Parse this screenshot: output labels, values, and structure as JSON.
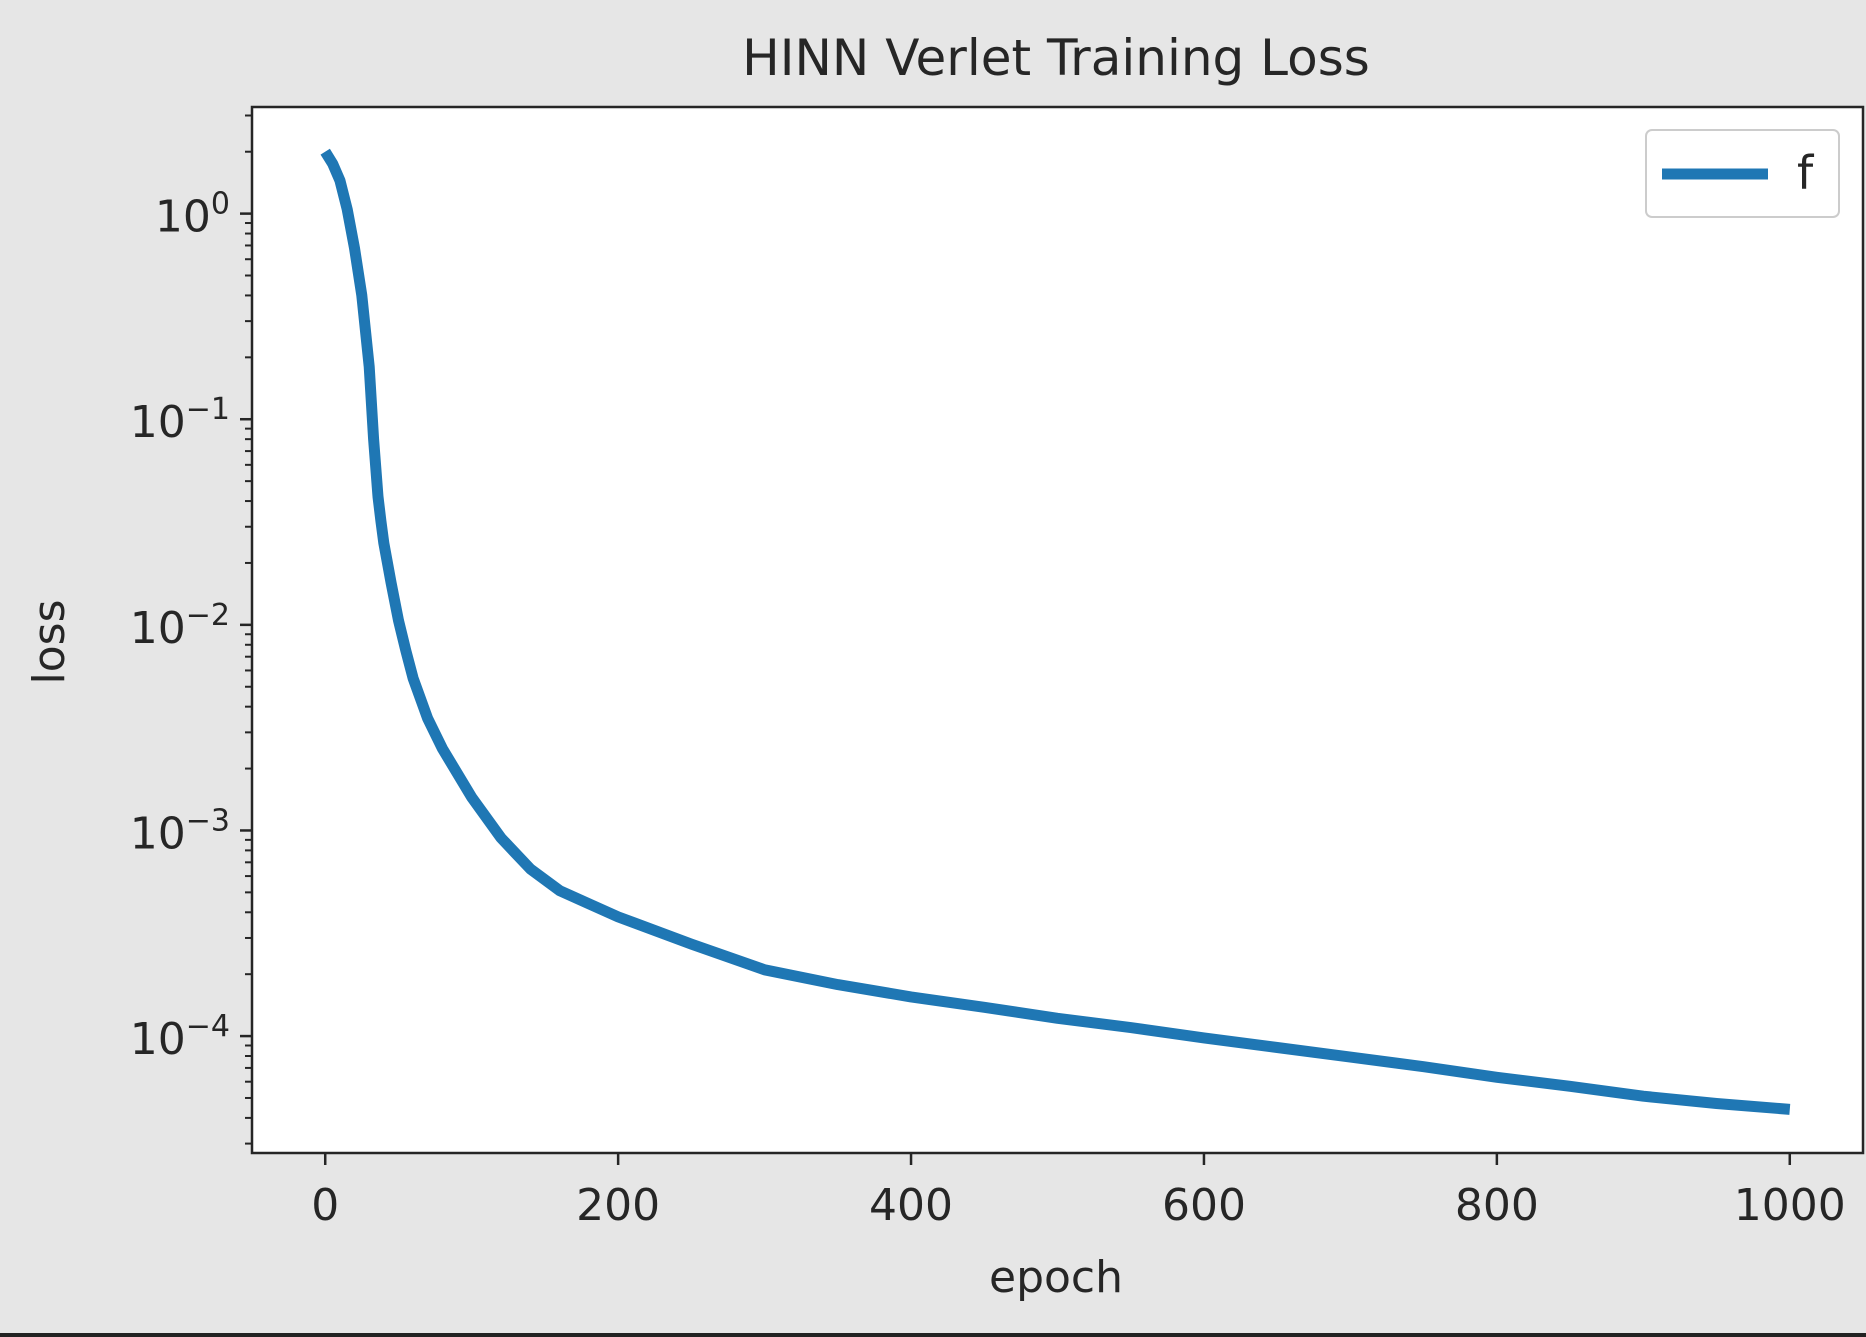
{
  "colors": {
    "figure_background": "#e6e6e6",
    "axes_background": "#ffffff",
    "axis_color": "#262626",
    "series_f": "#1f77b4"
  },
  "chart_data": {
    "type": "line",
    "title": "HINN Verlet Training Loss",
    "xlabel": "epoch",
    "ylabel": "loss",
    "yscale": "log",
    "xlim": [
      -50,
      1050
    ],
    "ylim": [
      2.7e-05,
      3.3
    ],
    "xticks": [
      0,
      200,
      400,
      600,
      800,
      1000
    ],
    "xtick_labels": [
      "0",
      "200",
      "400",
      "600",
      "800",
      "1000"
    ],
    "yticks": [
      1,
      0.1,
      0.01,
      0.001,
      0.0001
    ],
    "ytick_labels": [
      {
        "base": "10",
        "exp": "0"
      },
      {
        "base": "10",
        "exp": "−1"
      },
      {
        "base": "10",
        "exp": "−2"
      },
      {
        "base": "10",
        "exp": "−3"
      },
      {
        "base": "10",
        "exp": "−4"
      }
    ],
    "grid": false,
    "legend": {
      "position": "top-right"
    },
    "series": [
      {
        "name": "f",
        "x": [
          0,
          5,
          10,
          15,
          20,
          25,
          30,
          33,
          36,
          38,
          40,
          45,
          50,
          55,
          60,
          70,
          80,
          100,
          120,
          140,
          160,
          180,
          200,
          250,
          300,
          350,
          400,
          450,
          500,
          550,
          600,
          650,
          700,
          750,
          800,
          850,
          900,
          950,
          1000
        ],
        "y": [
          2.0,
          1.75,
          1.45,
          1.05,
          0.68,
          0.4,
          0.18,
          0.08,
          0.042,
          0.032,
          0.025,
          0.016,
          0.0105,
          0.0075,
          0.0055,
          0.0035,
          0.0025,
          0.00145,
          0.00092,
          0.00065,
          0.00051,
          0.00044,
          0.00038,
          0.00028,
          0.00021,
          0.000178,
          0.000155,
          0.000138,
          0.000122,
          0.00011,
          9.8e-05,
          8.8e-05,
          7.9e-05,
          7.1e-05,
          6.3e-05,
          5.7e-05,
          5.1e-05,
          4.7e-05,
          4.4e-05
        ]
      }
    ]
  }
}
